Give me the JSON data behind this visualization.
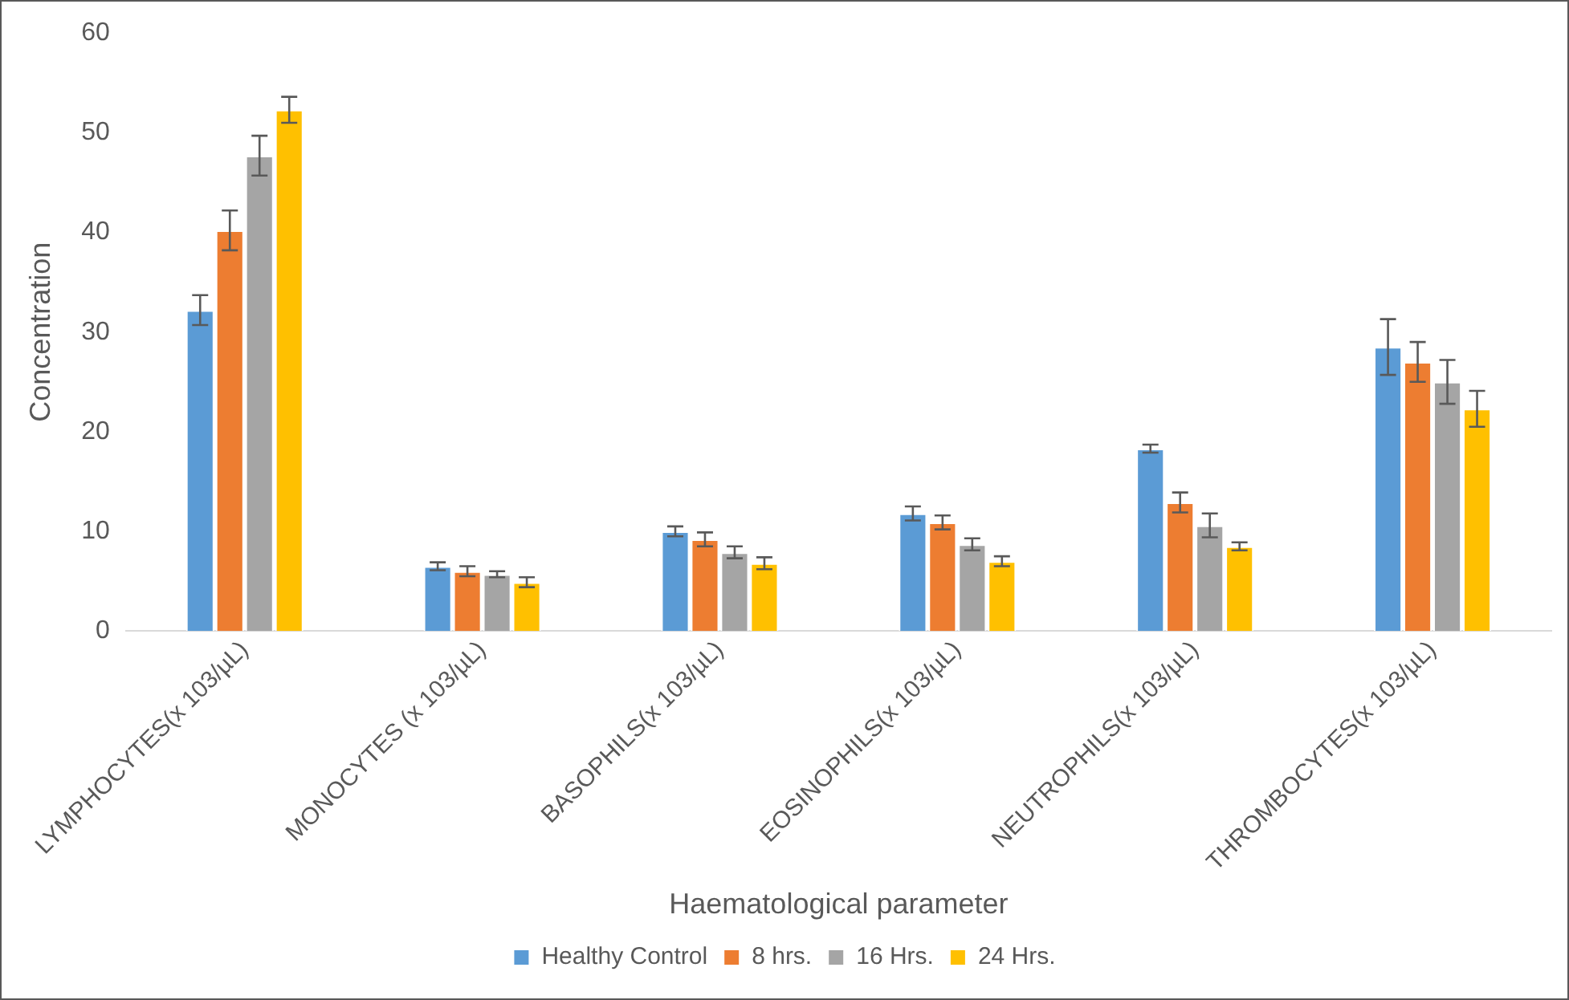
{
  "chart_data": {
    "type": "bar",
    "xlabel": "Haematological parameter",
    "ylabel": "Concentration",
    "categories": [
      "LYMPHOCYTES(x 103/µL)",
      "MONOCYTES (x 103/µL)",
      "BASOPHILS(x 103/µL)",
      "EOSINOPHILS(x 103/µL)",
      "NEUTROPHILS(x 103/µL)",
      "THROMBOCYTES(x 103/µL)"
    ],
    "series": [
      {
        "name": "Healthy Control",
        "color": "#5b9bd5",
        "values": [
          32.2,
          6.5,
          10.0,
          11.8,
          18.3,
          28.5
        ],
        "errors": [
          1.5,
          0.4,
          0.5,
          0.7,
          0.4,
          2.8
        ]
      },
      {
        "name": "8 hrs.",
        "color": "#ed7d31",
        "values": [
          40.2,
          6.0,
          9.2,
          10.9,
          12.9,
          27.0
        ],
        "errors": [
          2.0,
          0.5,
          0.7,
          0.7,
          1.0,
          2.0
        ]
      },
      {
        "name": "16 Hrs.",
        "color": "#a5a5a5",
        "values": [
          47.7,
          5.7,
          7.9,
          8.7,
          10.6,
          25.0
        ],
        "errors": [
          2.0,
          0.3,
          0.6,
          0.6,
          1.2,
          2.2
        ]
      },
      {
        "name": "24 Hrs.",
        "color": "#ffc000",
        "values": [
          52.3,
          4.9,
          6.8,
          7.0,
          8.5,
          22.3
        ],
        "errors": [
          1.3,
          0.5,
          0.6,
          0.5,
          0.4,
          1.8
        ]
      }
    ],
    "ylim": [
      0,
      60
    ],
    "yticks": [
      0,
      10,
      20,
      30,
      40,
      50,
      60
    ],
    "grid": false,
    "legend": "bottom"
  }
}
